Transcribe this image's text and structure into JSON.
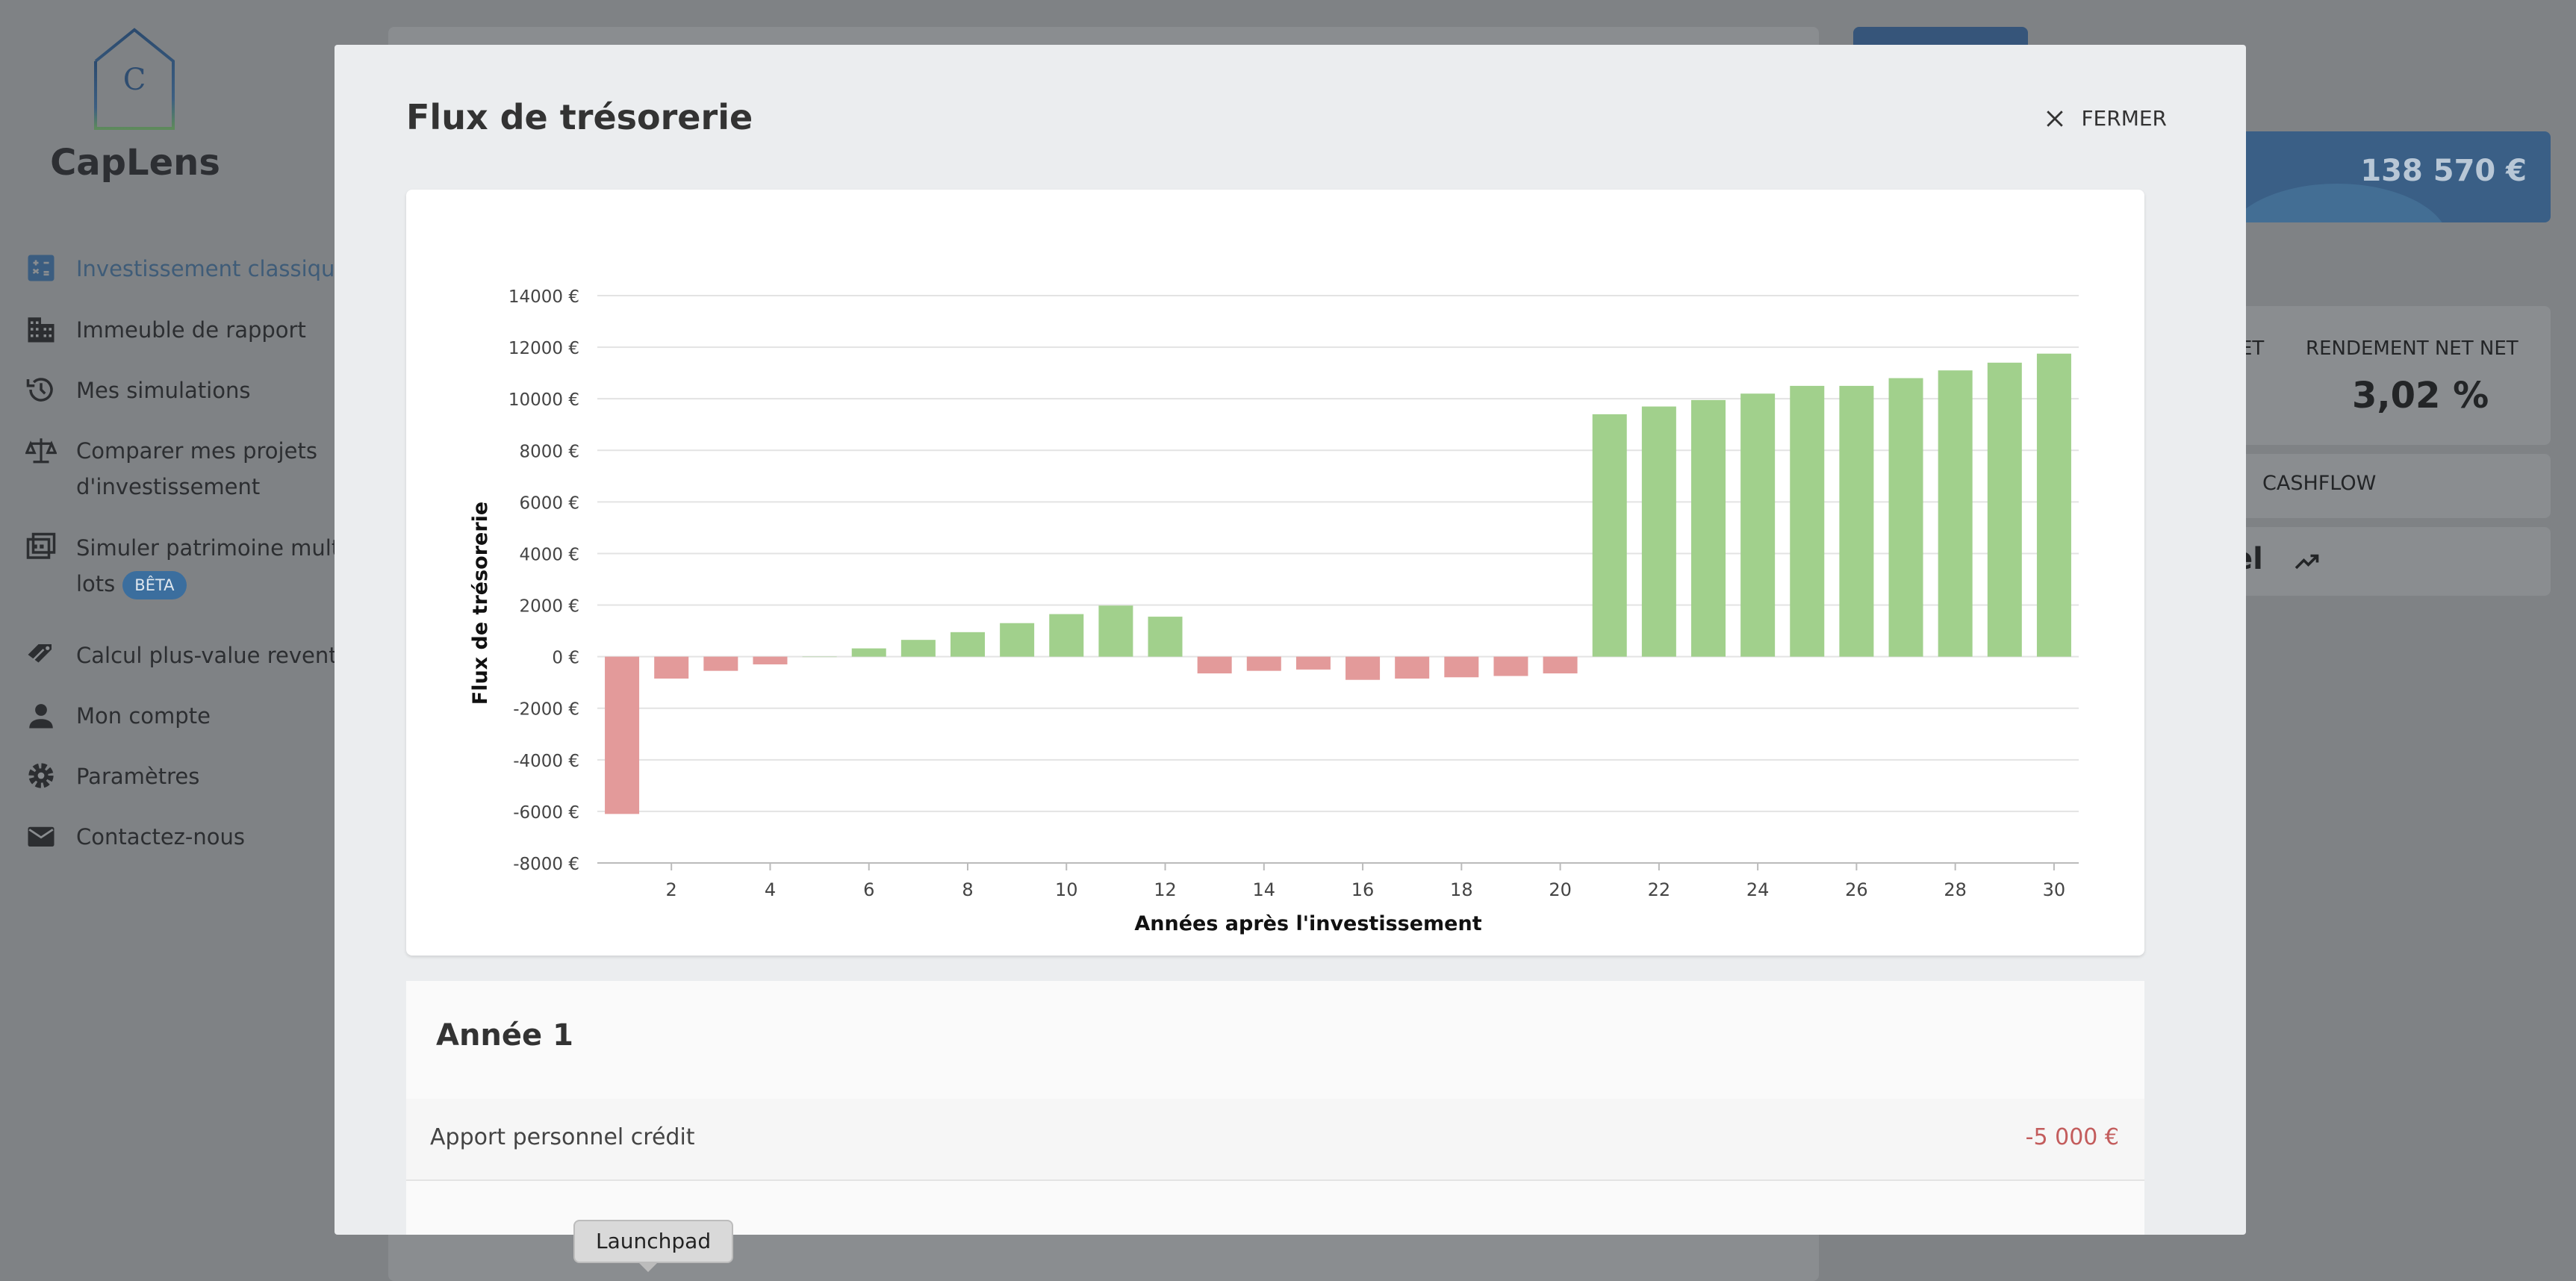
{
  "app": {
    "brand": "CapLens",
    "logo_letter": "C"
  },
  "sidebar": {
    "items": [
      {
        "label": "Investissement classique",
        "icon": "calculator-icon",
        "active": true
      },
      {
        "label": "Immeuble de rapport",
        "icon": "building-icon"
      },
      {
        "label": "Mes simulations",
        "icon": "history-icon"
      },
      {
        "label": "Comparer mes projets d'investissement",
        "icon": "scale-icon"
      },
      {
        "label": "Simuler patrimoine multi-lots",
        "icon": "portfolio-icon",
        "badge": "BÊTA"
      },
      {
        "label": "Calcul plus-value revente",
        "icon": "tag-icon"
      },
      {
        "label": "Mon compte",
        "icon": "person-icon"
      },
      {
        "label": "Paramètres",
        "icon": "gear-icon"
      },
      {
        "label": "Contactez-nous",
        "icon": "mail-icon"
      }
    ]
  },
  "background": {
    "amount": "138 570 €",
    "rendement_partial": "ET",
    "rendement_label": "RENDEMENT NET NET",
    "rendement_value": "3,02 %",
    "cashflow_label": "CASHFLOW",
    "partial_title": "el",
    "trend_icon": "trending-up-icon"
  },
  "modal": {
    "title": "Flux de trésorerie",
    "close_label": "FERMER",
    "close_icon": "close-icon"
  },
  "chart_data": {
    "type": "bar",
    "xlabel": "Années après l'investissement",
    "ylabel": "Flux de trésorerie",
    "ylim": [
      -8000,
      14000
    ],
    "yticks": [
      14000,
      12000,
      10000,
      8000,
      6000,
      4000,
      2000,
      0,
      -2000,
      -4000,
      -6000,
      -8000
    ],
    "ytick_suffix": " €",
    "xticks": [
      2,
      4,
      6,
      8,
      10,
      12,
      14,
      16,
      18,
      20,
      22,
      24,
      26,
      28,
      30
    ],
    "grid": true,
    "colors": {
      "positive": "#a1d08c",
      "negative": "#e39a9a"
    },
    "x": [
      1,
      2,
      3,
      4,
      5,
      6,
      7,
      8,
      9,
      10,
      11,
      12,
      13,
      14,
      15,
      16,
      17,
      18,
      19,
      20,
      21,
      22,
      23,
      24,
      25,
      26,
      27,
      28,
      29,
      30
    ],
    "values": [
      -6100,
      -850,
      -550,
      -300,
      0,
      320,
      650,
      950,
      1300,
      1650,
      1980,
      1550,
      -650,
      -550,
      -500,
      -900,
      -850,
      -800,
      -750,
      -650,
      9400,
      9700,
      9950,
      10200,
      10500,
      10500,
      10800,
      11100,
      11400,
      11750
    ]
  },
  "year": {
    "title": "Année 1",
    "rows": [
      {
        "label": "Apport personnel crédit",
        "value": "-5 000 €"
      }
    ]
  },
  "tooltip": "Launchpad"
}
